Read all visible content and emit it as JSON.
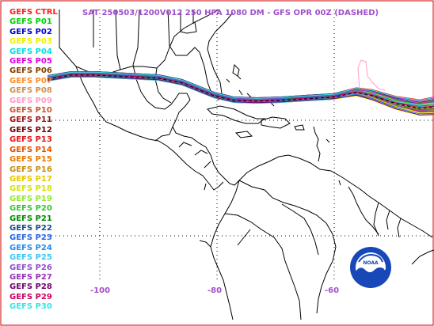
{
  "title": "SAT 250503/1200V012  250 HPA 1080 DM - GFS OPR 00Z (DASHED)",
  "legend": [
    {
      "label": "GEFS CTRL",
      "color": "#ff2020"
    },
    {
      "label": "GEFS P01",
      "color": "#00d000"
    },
    {
      "label": "GEFS P02",
      "color": "#0000c8"
    },
    {
      "label": "GEFS P03",
      "color": "#f0f000"
    },
    {
      "label": "GEFS P04",
      "color": "#00e0e0"
    },
    {
      "label": "GEFS P05",
      "color": "#e000e0"
    },
    {
      "label": "GEFS P06",
      "color": "#804000"
    },
    {
      "label": "GEFS P07",
      "color": "#ff8c28"
    },
    {
      "label": "GEFS P08",
      "color": "#d09050"
    },
    {
      "label": "GEFS P09",
      "color": "#ff9ec8"
    },
    {
      "label": "GEFS P10",
      "color": "#c85a28"
    },
    {
      "label": "GEFS P11",
      "color": "#a01414"
    },
    {
      "label": "GEFS P12",
      "color": "#780000"
    },
    {
      "label": "GEFS P13",
      "color": "#e81414"
    },
    {
      "label": "GEFS P14",
      "color": "#e85000"
    },
    {
      "label": "GEFS P15",
      "color": "#e87800"
    },
    {
      "label": "GEFS P16",
      "color": "#c88c14"
    },
    {
      "label": "GEFS P17",
      "color": "#e8c800"
    },
    {
      "label": "GEFS P18",
      "color": "#d2e600"
    },
    {
      "label": "GEFS P19",
      "color": "#96e632"
    },
    {
      "label": "GEFS P20",
      "color": "#32c832"
    },
    {
      "label": "GEFS P21",
      "color": "#008c00"
    },
    {
      "label": "GEFS P22",
      "color": "#14508c"
    },
    {
      "label": "GEFS P23",
      "color": "#2864e6"
    },
    {
      "label": "GEFS P24",
      "color": "#1e8cf0"
    },
    {
      "label": "GEFS P25",
      "color": "#3cc8f0"
    },
    {
      "label": "GEFS P26",
      "color": "#8c50c8"
    },
    {
      "label": "GEFS P27",
      "color": "#9632b4"
    },
    {
      "label": "GEFS P28",
      "color": "#6e006e"
    },
    {
      "label": "GEFS P29",
      "color": "#c80064"
    },
    {
      "label": "GEFS P30",
      "color": "#32e6e6"
    }
  ],
  "longitude_labels": [
    {
      "label": "-100",
      "lon": -100
    },
    {
      "label": "-80",
      "lon": -80
    },
    {
      "label": "-60",
      "lon": -60
    }
  ],
  "gridlines": {
    "longitudes": [
      -100,
      -80,
      -60
    ],
    "latitudes": [
      30,
      10
    ],
    "style": "dotted",
    "color": "#000000"
  },
  "contour": {
    "level": "1080 DM",
    "pressure": "250 HPA",
    "members": 31
  },
  "outer_border_color": "#cc0000"
}
